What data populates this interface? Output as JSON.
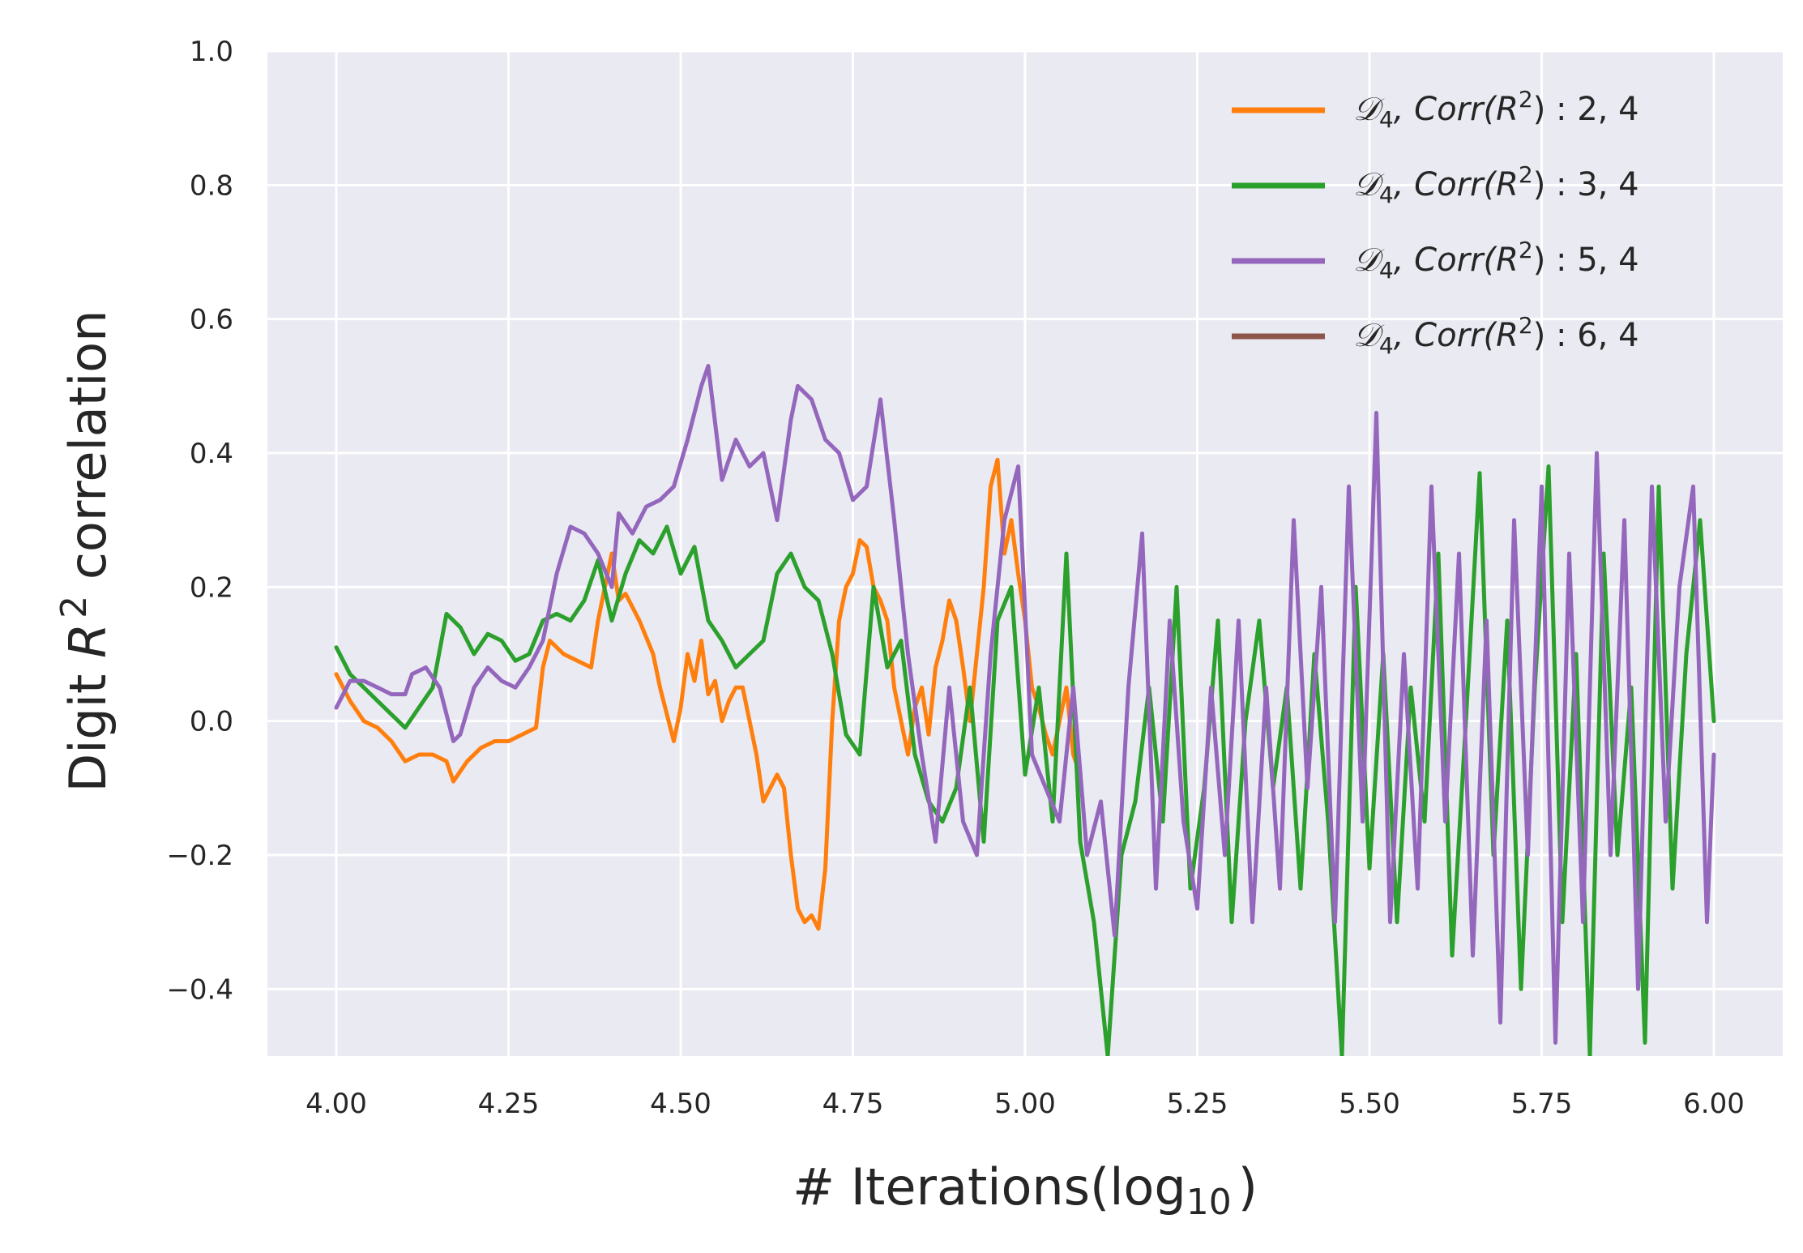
{
  "chart_data": {
    "type": "line",
    "xlabel_main": "# Iterations(log",
    "xlabel_sub": "10",
    "xlabel_close": ")",
    "ylabel_pre": "Digit ",
    "ylabel_var": "R",
    "ylabel_sup": "2",
    "ylabel_post": " correlation",
    "xlim": [
      3.9,
      6.1
    ],
    "ylim": [
      -0.5,
      1.0
    ],
    "xticks": [
      4.0,
      4.25,
      4.5,
      4.75,
      5.0,
      5.25,
      5.5,
      5.75,
      6.0
    ],
    "xtick_labels": [
      "4.00",
      "4.25",
      "4.50",
      "4.75",
      "5.00",
      "5.25",
      "5.50",
      "5.75",
      "6.00"
    ],
    "yticks": [
      -0.4,
      -0.2,
      0.0,
      0.2,
      0.4,
      0.6,
      0.8,
      1.0
    ],
    "ytick_labels": [
      "−0.4",
      "−0.2",
      "0.0",
      "0.2",
      "0.4",
      "0.6",
      "0.8",
      "1.0"
    ],
    "grid": true,
    "legend_position": "top-right",
    "series": [
      {
        "legend_sym": "𝒟",
        "legend_sub": "4",
        "legend_mid": ", Corr(R",
        "legend_sup": "2",
        "legend_end": ") : 2, 4",
        "color": "#ff7f0e",
        "x": [
          4.0,
          4.02,
          4.04,
          4.06,
          4.08,
          4.1,
          4.12,
          4.14,
          4.16,
          4.17,
          4.19,
          4.21,
          4.23,
          4.25,
          4.27,
          4.29,
          4.3,
          4.31,
          4.33,
          4.35,
          4.37,
          4.38,
          4.39,
          4.4,
          4.41,
          4.42,
          4.44,
          4.46,
          4.47,
          4.49,
          4.5,
          4.51,
          4.52,
          4.53,
          4.54,
          4.55,
          4.56,
          4.57,
          4.58,
          4.59,
          4.6,
          4.61,
          4.62,
          4.63,
          4.64,
          4.65,
          4.66,
          4.67,
          4.68,
          4.69,
          4.7,
          4.71,
          4.72,
          4.73,
          4.74,
          4.75,
          4.76,
          4.77,
          4.78,
          4.79,
          4.8,
          4.81,
          4.82,
          4.83,
          4.84,
          4.85,
          4.86,
          4.87,
          4.88,
          4.89,
          4.9,
          4.91,
          4.92,
          4.93,
          4.94,
          4.95,
          4.96,
          4.97,
          4.98,
          4.99,
          5.0,
          5.01,
          5.02,
          5.03,
          5.04,
          5.05,
          5.06,
          5.07,
          5.08
        ],
        "values": [
          0.07,
          0.03,
          0.0,
          -0.01,
          -0.03,
          -0.06,
          -0.05,
          -0.05,
          -0.06,
          -0.09,
          -0.06,
          -0.04,
          -0.03,
          -0.03,
          -0.02,
          -0.01,
          0.08,
          0.12,
          0.1,
          0.09,
          0.08,
          0.15,
          0.2,
          0.25,
          0.18,
          0.19,
          0.15,
          0.1,
          0.05,
          -0.03,
          0.02,
          0.1,
          0.06,
          0.12,
          0.04,
          0.06,
          0.0,
          0.03,
          0.05,
          0.05,
          0.0,
          -0.05,
          -0.12,
          -0.1,
          -0.08,
          -0.1,
          -0.2,
          -0.28,
          -0.3,
          -0.29,
          -0.31,
          -0.22,
          0.0,
          0.15,
          0.2,
          0.22,
          0.27,
          0.26,
          0.2,
          0.18,
          0.15,
          0.05,
          0.0,
          -0.05,
          0.02,
          0.05,
          -0.02,
          0.08,
          0.12,
          0.18,
          0.15,
          0.08,
          0.0,
          0.1,
          0.2,
          0.35,
          0.39,
          0.25,
          0.3,
          0.22,
          0.15,
          0.05,
          0.02,
          -0.02,
          -0.05,
          0.0,
          0.05,
          -0.05,
          -0.08
        ]
      },
      {
        "legend_sym": "𝒟",
        "legend_sub": "4",
        "legend_mid": ", Corr(R",
        "legend_sup": "2",
        "legend_end": ") : 3, 4",
        "color": "#2ca02c",
        "x": [
          4.0,
          4.02,
          4.04,
          4.06,
          4.08,
          4.1,
          4.12,
          4.14,
          4.16,
          4.18,
          4.2,
          4.22,
          4.24,
          4.26,
          4.28,
          4.3,
          4.32,
          4.34,
          4.36,
          4.38,
          4.4,
          4.42,
          4.44,
          4.46,
          4.48,
          4.5,
          4.52,
          4.54,
          4.56,
          4.58,
          4.6,
          4.62,
          4.64,
          4.66,
          4.68,
          4.7,
          4.72,
          4.74,
          4.76,
          4.78,
          4.8,
          4.82,
          4.84,
          4.86,
          4.88,
          4.9,
          4.92,
          4.94,
          4.96,
          4.98,
          5.0,
          5.02,
          5.04,
          5.06,
          5.08,
          5.1,
          5.12,
          5.14,
          5.16,
          5.18,
          5.2,
          5.22,
          5.24,
          5.26,
          5.28,
          5.3,
          5.32,
          5.34,
          5.36,
          5.38,
          5.4,
          5.42,
          5.44,
          5.46,
          5.48,
          5.5,
          5.52,
          5.54,
          5.56,
          5.58,
          5.6,
          5.62,
          5.64,
          5.66,
          5.68,
          5.7,
          5.72,
          5.74,
          5.76,
          5.78,
          5.8,
          5.82,
          5.84,
          5.86,
          5.88,
          5.9,
          5.92,
          5.94,
          5.96,
          5.98,
          6.0
        ],
        "values": [
          0.11,
          0.07,
          0.05,
          0.03,
          0.01,
          -0.01,
          0.02,
          0.05,
          0.16,
          0.14,
          0.1,
          0.13,
          0.12,
          0.09,
          0.1,
          0.15,
          0.16,
          0.15,
          0.18,
          0.24,
          0.15,
          0.22,
          0.27,
          0.25,
          0.29,
          0.22,
          0.26,
          0.15,
          0.12,
          0.08,
          0.1,
          0.12,
          0.22,
          0.25,
          0.2,
          0.18,
          0.1,
          -0.02,
          -0.05,
          0.2,
          0.08,
          0.12,
          -0.05,
          -0.12,
          -0.15,
          -0.1,
          0.05,
          -0.18,
          0.15,
          0.2,
          -0.08,
          0.05,
          -0.15,
          0.25,
          -0.18,
          -0.3,
          -0.5,
          -0.2,
          -0.12,
          0.05,
          -0.15,
          0.2,
          -0.25,
          -0.1,
          0.15,
          -0.3,
          0.0,
          0.15,
          -0.1,
          0.05,
          -0.25,
          0.1,
          -0.15,
          -0.5,
          0.2,
          -0.22,
          0.1,
          -0.3,
          0.05,
          -0.15,
          0.25,
          -0.35,
          0.0,
          0.37,
          -0.2,
          0.15,
          -0.4,
          0.05,
          0.38,
          -0.3,
          0.1,
          -0.5,
          0.25,
          -0.2,
          0.05,
          -0.48,
          0.35,
          -0.25,
          0.1,
          0.3,
          0.0
        ]
      },
      {
        "legend_sym": "𝒟",
        "legend_sub": "4",
        "legend_mid": ", Corr(R",
        "legend_sup": "2",
        "legend_end": ") : 5, 4",
        "color": "#9467bd",
        "x": [
          4.0,
          4.02,
          4.04,
          4.06,
          4.08,
          4.1,
          4.11,
          4.13,
          4.15,
          4.17,
          4.18,
          4.2,
          4.22,
          4.24,
          4.26,
          4.28,
          4.3,
          4.32,
          4.34,
          4.36,
          4.38,
          4.4,
          4.41,
          4.43,
          4.45,
          4.47,
          4.49,
          4.51,
          4.53,
          4.54,
          4.56,
          4.58,
          4.6,
          4.62,
          4.64,
          4.66,
          4.67,
          4.69,
          4.71,
          4.73,
          4.75,
          4.77,
          4.79,
          4.81,
          4.83,
          4.85,
          4.87,
          4.89,
          4.91,
          4.93,
          4.95,
          4.97,
          4.99,
          5.01,
          5.03,
          5.05,
          5.07,
          5.09,
          5.11,
          5.13,
          5.15,
          5.17,
          5.19,
          5.21,
          5.23,
          5.25,
          5.27,
          5.29,
          5.31,
          5.33,
          5.35,
          5.37,
          5.39,
          5.41,
          5.43,
          5.45,
          5.47,
          5.49,
          5.51,
          5.53,
          5.55,
          5.57,
          5.59,
          5.61,
          5.63,
          5.65,
          5.67,
          5.69,
          5.71,
          5.73,
          5.75,
          5.77,
          5.79,
          5.81,
          5.83,
          5.85,
          5.87,
          5.89,
          5.91,
          5.93,
          5.95,
          5.97,
          5.99,
          6.0
        ],
        "values": [
          0.02,
          0.06,
          0.06,
          0.05,
          0.04,
          0.04,
          0.07,
          0.08,
          0.05,
          -0.03,
          -0.02,
          0.05,
          0.08,
          0.06,
          0.05,
          0.08,
          0.12,
          0.22,
          0.29,
          0.28,
          0.25,
          0.2,
          0.31,
          0.28,
          0.32,
          0.33,
          0.35,
          0.42,
          0.5,
          0.53,
          0.36,
          0.42,
          0.38,
          0.4,
          0.3,
          0.45,
          0.5,
          0.48,
          0.42,
          0.4,
          0.33,
          0.35,
          0.48,
          0.3,
          0.1,
          -0.05,
          -0.18,
          0.05,
          -0.15,
          -0.2,
          0.1,
          0.3,
          0.38,
          -0.05,
          -0.1,
          -0.15,
          0.05,
          -0.2,
          -0.12,
          -0.32,
          0.05,
          0.28,
          -0.25,
          0.15,
          -0.15,
          -0.28,
          0.05,
          -0.2,
          0.15,
          -0.3,
          0.05,
          -0.25,
          0.3,
          -0.1,
          0.2,
          -0.3,
          0.35,
          -0.15,
          0.46,
          -0.3,
          0.1,
          -0.25,
          0.35,
          -0.15,
          0.25,
          -0.35,
          0.15,
          -0.45,
          0.3,
          -0.2,
          0.35,
          -0.48,
          0.25,
          -0.3,
          0.4,
          -0.2,
          0.3,
          -0.4,
          0.35,
          -0.15,
          0.2,
          0.35,
          -0.3,
          -0.05
        ]
      },
      {
        "legend_sym": "𝒟",
        "legend_sub": "4",
        "legend_mid": ", Corr(R",
        "legend_sup": "2",
        "legend_end": ") : 6, 4",
        "color": "#8c564b",
        "x": [],
        "values": []
      }
    ]
  }
}
